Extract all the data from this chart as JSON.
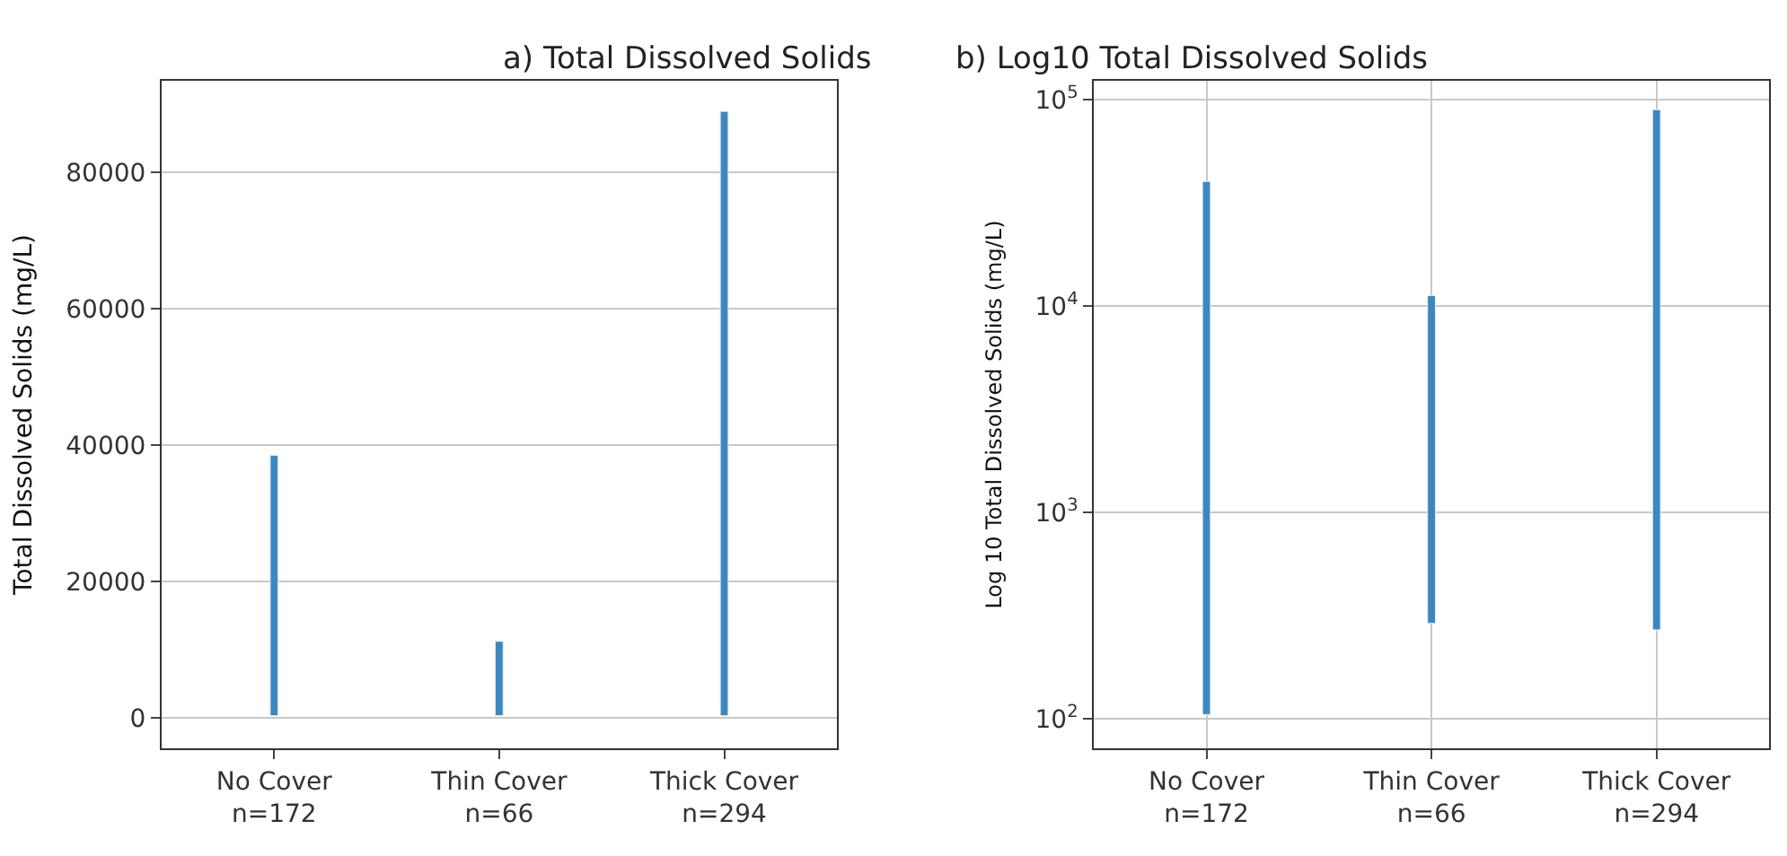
{
  "chart_data": [
    {
      "type": "bar",
      "title": "a) Total Dissolved Solids",
      "ylabel": "Total Dissolved Solids (mg/L)",
      "categories": [
        "No Cover\nn=172",
        "Thin Cover\nn=66",
        "Thick Cover\nn=294"
      ],
      "base": [
        300,
        300,
        300
      ],
      "values": [
        38200,
        10900,
        88700
      ],
      "color": "#3c87c0",
      "ylim": [
        -4500,
        93500
      ],
      "yticks": [
        0,
        20000,
        40000,
        60000,
        80000
      ],
      "grid": "y"
    },
    {
      "type": "bar",
      "title": "b) Log10 Total Dissolved Solids",
      "ylabel": "Log 10 Total Dissolved Solids (mg/L)",
      "categories": [
        "No Cover\nn=172",
        "Thin Cover\nn=66",
        "Thick Cover\nn=294"
      ],
      "base": [
        105,
        290,
        270
      ],
      "values": [
        39895,
        10910,
        88730
      ],
      "color": "#3c87c0",
      "log": "y",
      "ylim": [
        72,
        123000
      ],
      "yticks": [
        {
          "value": 100,
          "label": "10$^{2}$"
        },
        {
          "value": 1000,
          "label": "10$^{3}$"
        },
        {
          "value": 10000,
          "label": "10$^{4}$"
        },
        {
          "value": 100000,
          "label": "10$^{5}$"
        }
      ],
      "grid": true
    }
  ]
}
